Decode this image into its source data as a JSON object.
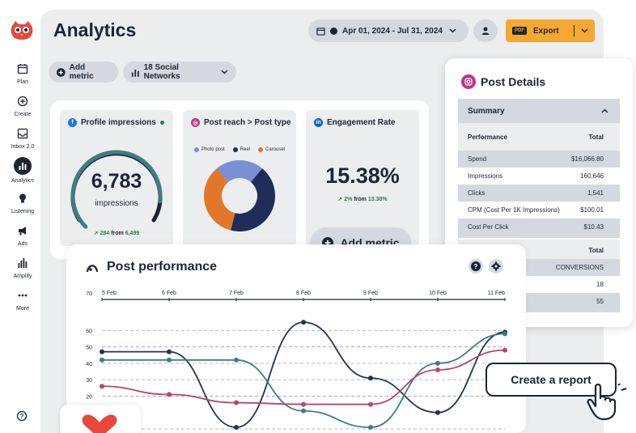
{
  "sidebar": {
    "items": [
      {
        "label": "Plan",
        "icon": "calendar-icon"
      },
      {
        "label": "Create",
        "icon": "plus-circle-icon"
      },
      {
        "label": "Inbox 2.0",
        "icon": "inbox-icon"
      },
      {
        "label": "Analytics",
        "icon": "bar-chart-icon",
        "active": true
      },
      {
        "label": "Listening",
        "icon": "lightbulb-icon"
      },
      {
        "label": "Ads",
        "icon": "megaphone-icon"
      },
      {
        "label": "Amplify",
        "icon": "amplify-bars-icon"
      },
      {
        "label": "More",
        "icon": "ellipsis-icon"
      }
    ]
  },
  "header": {
    "title": "Analytics",
    "date_range": "Apr 01, 2024 - Jul 31, 2024",
    "export_label": "Export",
    "pdf_tag": "PDF"
  },
  "toolbar": {
    "add_metric": "Add metric",
    "social_networks": "18 Social Networks"
  },
  "metrics": {
    "profile": {
      "title": "Profile impressions",
      "value": "6,783",
      "unit": "impressions",
      "trend_value": "284",
      "trend_text": "from",
      "trend_prev": "6,499",
      "gauge_fraction": 0.86
    },
    "reach": {
      "title": "Post reach > Post type",
      "legend": [
        "Photo post",
        "Reel",
        "Carousel"
      ],
      "slices": [
        {
          "name": "Photo post",
          "value": 22,
          "color": "#7b8fd4"
        },
        {
          "name": "Reel",
          "value": 43,
          "color": "#1f2d58"
        },
        {
          "name": "Carousel",
          "value": 35,
          "color": "#e2762b"
        }
      ]
    },
    "engagement": {
      "title": "Engagement Rate",
      "value": "15.38%",
      "trend_value": "2%",
      "trend_text": "from",
      "trend_prev": "13.38%"
    },
    "add_metric": "Add metric"
  },
  "post_details": {
    "title": "Post Details",
    "summary": "Summary",
    "col_metric": "Performance",
    "col_total": "Total",
    "rows": [
      {
        "label": "Spend",
        "value": "$16,066.80"
      },
      {
        "label": "Impressions",
        "value": "160,646"
      },
      {
        "label": "Clicks",
        "value": "1,541"
      },
      {
        "label": "CPM (Cost Per 1K Impressions)",
        "value": "$100.01"
      },
      {
        "label": "Cost Per Click",
        "value": "$10.43"
      }
    ],
    "col_total2": "Total",
    "conversions_label": "CONVERSIONS",
    "conv_values": [
      "18",
      "55"
    ]
  },
  "performance": {
    "title": "Post performance",
    "create_report": "Create a report"
  },
  "chart_data": {
    "type": "line",
    "title": "Post performance",
    "categories": [
      "5 Feb",
      "6 Feb",
      "7 Feb",
      "8 Feb",
      "9 Feb",
      "10 Feb",
      "11 Feb"
    ],
    "y_ticks": [
      "70",
      "60",
      "50",
      "40",
      "30",
      "20"
    ],
    "ylim": [
      0,
      70
    ],
    "series": [
      {
        "name": "Series navy",
        "color": "#243356",
        "values": [
          47,
          47,
          1,
          65,
          31,
          10,
          59
        ]
      },
      {
        "name": "Series teal",
        "color": "#3d7e82",
        "values": [
          42,
          42,
          42,
          11,
          1,
          40,
          58
        ]
      },
      {
        "name": "Series magenta",
        "color": "#b8436f",
        "values": [
          26,
          21,
          16,
          15,
          15,
          36,
          48
        ]
      }
    ]
  },
  "colors": {
    "brand_orange": "#f4a832",
    "navy": "#1c2536",
    "panel_bg": "#ecedee",
    "pill_bg": "#d5d9df"
  }
}
